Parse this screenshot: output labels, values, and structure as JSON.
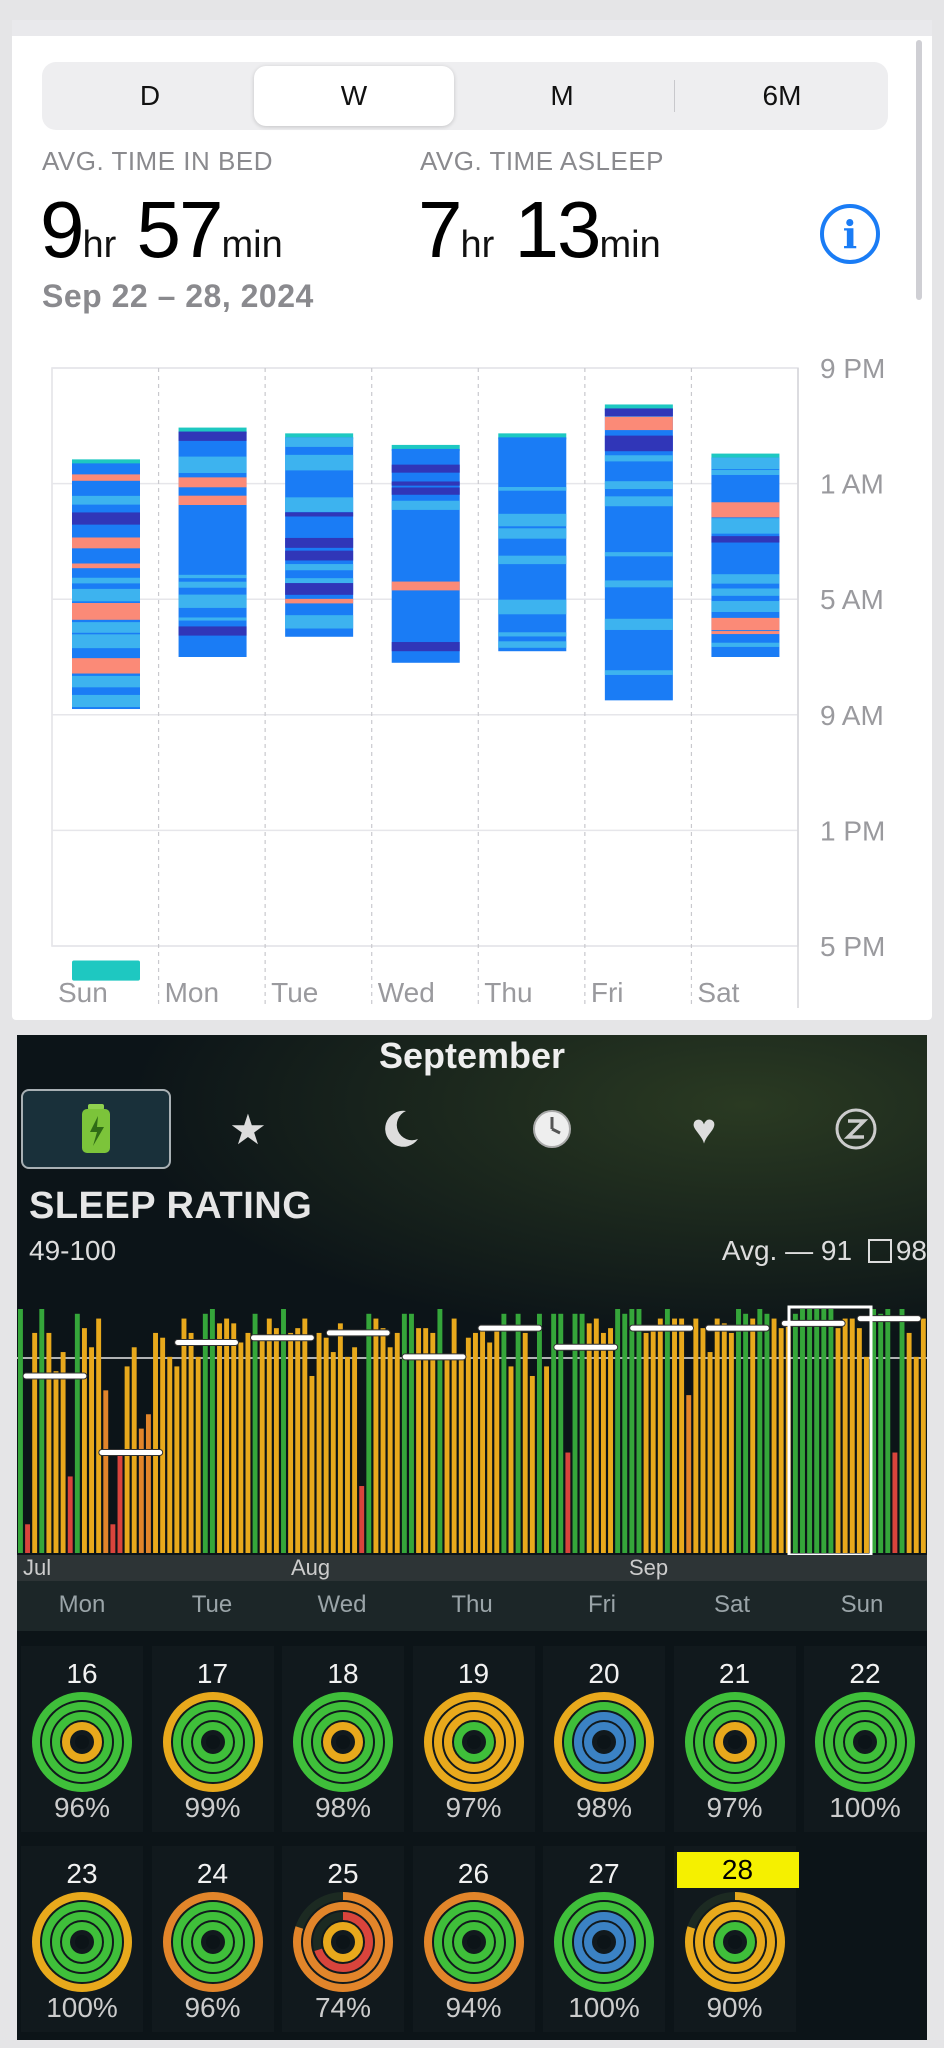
{
  "segment": {
    "items": [
      "D",
      "W",
      "M",
      "6M"
    ],
    "selected": 1
  },
  "summary": {
    "in_bed_label": "AVG. TIME IN BED",
    "in_bed_hr": "9",
    "in_bed_min": "57",
    "asleep_label": "AVG. TIME ASLEEP",
    "asleep_hr": "7",
    "asleep_min": "13",
    "unit_hr": "hr",
    "unit_min": "min",
    "date_range": "Sep 22 – 28, 2024"
  },
  "sleep_chart": {
    "y_ticks": [
      "9 PM",
      "1 AM",
      "5 AM",
      "9 AM",
      "1 PM",
      "5 PM"
    ],
    "x_ticks": [
      "Sun",
      "Mon",
      "Tue",
      "Wed",
      "Thu",
      "Fri",
      "Sat"
    ],
    "colors": {
      "awake": "#fb8a77",
      "rem": "#3db3ef",
      "core": "#1a7cf5",
      "deep": "#3036b8",
      "inbed": "#1ec8c1"
    },
    "days": [
      {
        "start_h": 24.3,
        "end_h": 32.8,
        "nap": [
          41.5,
          42.2
        ]
      },
      {
        "start_h": 23.2,
        "end_h": 31.0
      },
      {
        "start_h": 23.4,
        "end_h": 30.3
      },
      {
        "start_h": 23.8,
        "end_h": 31.2
      },
      {
        "start_h": 23.4,
        "end_h": 30.8
      },
      {
        "start_h": 22.4,
        "end_h": 32.5
      },
      {
        "start_h": 24.1,
        "end_h": 31.0
      }
    ]
  },
  "bottom": {
    "month": "September",
    "tabs": [
      "battery-icon",
      "star-icon",
      "moon-icon",
      "clock-icon",
      "heart-icon",
      "zzz-icon"
    ],
    "title": "SLEEP RATING",
    "range": "49-100",
    "avg_label": "Avg. —",
    "avg_value": "91",
    "box_value": "98",
    "month_axis": [
      "Jul",
      "Aug",
      "Sep"
    ],
    "week_days": [
      "Mon",
      "Tue",
      "Wed",
      "Thu",
      "Fri",
      "Sat",
      "Sun"
    ],
    "rating_series": [
      100,
      55,
      95,
      100,
      95,
      87,
      91,
      65,
      99,
      96,
      92,
      98,
      83,
      55,
      70,
      88,
      92,
      75,
      78,
      95,
      94,
      90,
      88,
      98,
      95,
      90,
      99,
      100,
      97,
      98,
      97,
      93,
      95,
      99,
      94,
      98,
      96,
      100,
      95,
      96,
      98,
      86,
      95,
      94,
      91,
      97,
      90,
      92,
      63,
      99,
      98,
      96,
      92,
      95,
      99,
      99,
      96,
      96,
      95,
      100,
      90,
      98,
      90,
      94,
      95,
      96,
      93,
      96,
      99,
      88,
      99,
      95,
      86,
      99,
      88,
      99,
      99,
      70,
      99,
      99,
      97,
      98,
      95,
      96,
      100,
      99,
      100,
      100,
      95,
      96,
      98,
      100,
      98,
      98,
      82,
      98,
      96,
      91,
      98,
      97,
      95,
      100,
      99,
      98,
      100,
      99,
      98,
      96,
      97,
      99,
      100,
      100,
      100,
      100,
      100,
      96,
      98,
      98,
      96,
      90,
      100,
      99,
      100,
      70,
      100,
      95,
      90,
      98
    ],
    "weekly_avg": [
      86,
      70,
      93,
      94,
      95,
      90,
      96,
      92,
      96,
      96,
      97,
      98
    ],
    "calendar": [
      {
        "day": "16",
        "pct": "96%"
      },
      {
        "day": "17",
        "pct": "99%"
      },
      {
        "day": "18",
        "pct": "98%"
      },
      {
        "day": "19",
        "pct": "97%"
      },
      {
        "day": "20",
        "pct": "98%"
      },
      {
        "day": "21",
        "pct": "97%"
      },
      {
        "day": "22",
        "pct": "100%"
      },
      {
        "day": "23",
        "pct": "100%"
      },
      {
        "day": "24",
        "pct": "96%"
      },
      {
        "day": "25",
        "pct": "74%"
      },
      {
        "day": "26",
        "pct": "94%"
      },
      {
        "day": "27",
        "pct": "100%"
      },
      {
        "day": "28",
        "pct": "90%"
      }
    ]
  }
}
